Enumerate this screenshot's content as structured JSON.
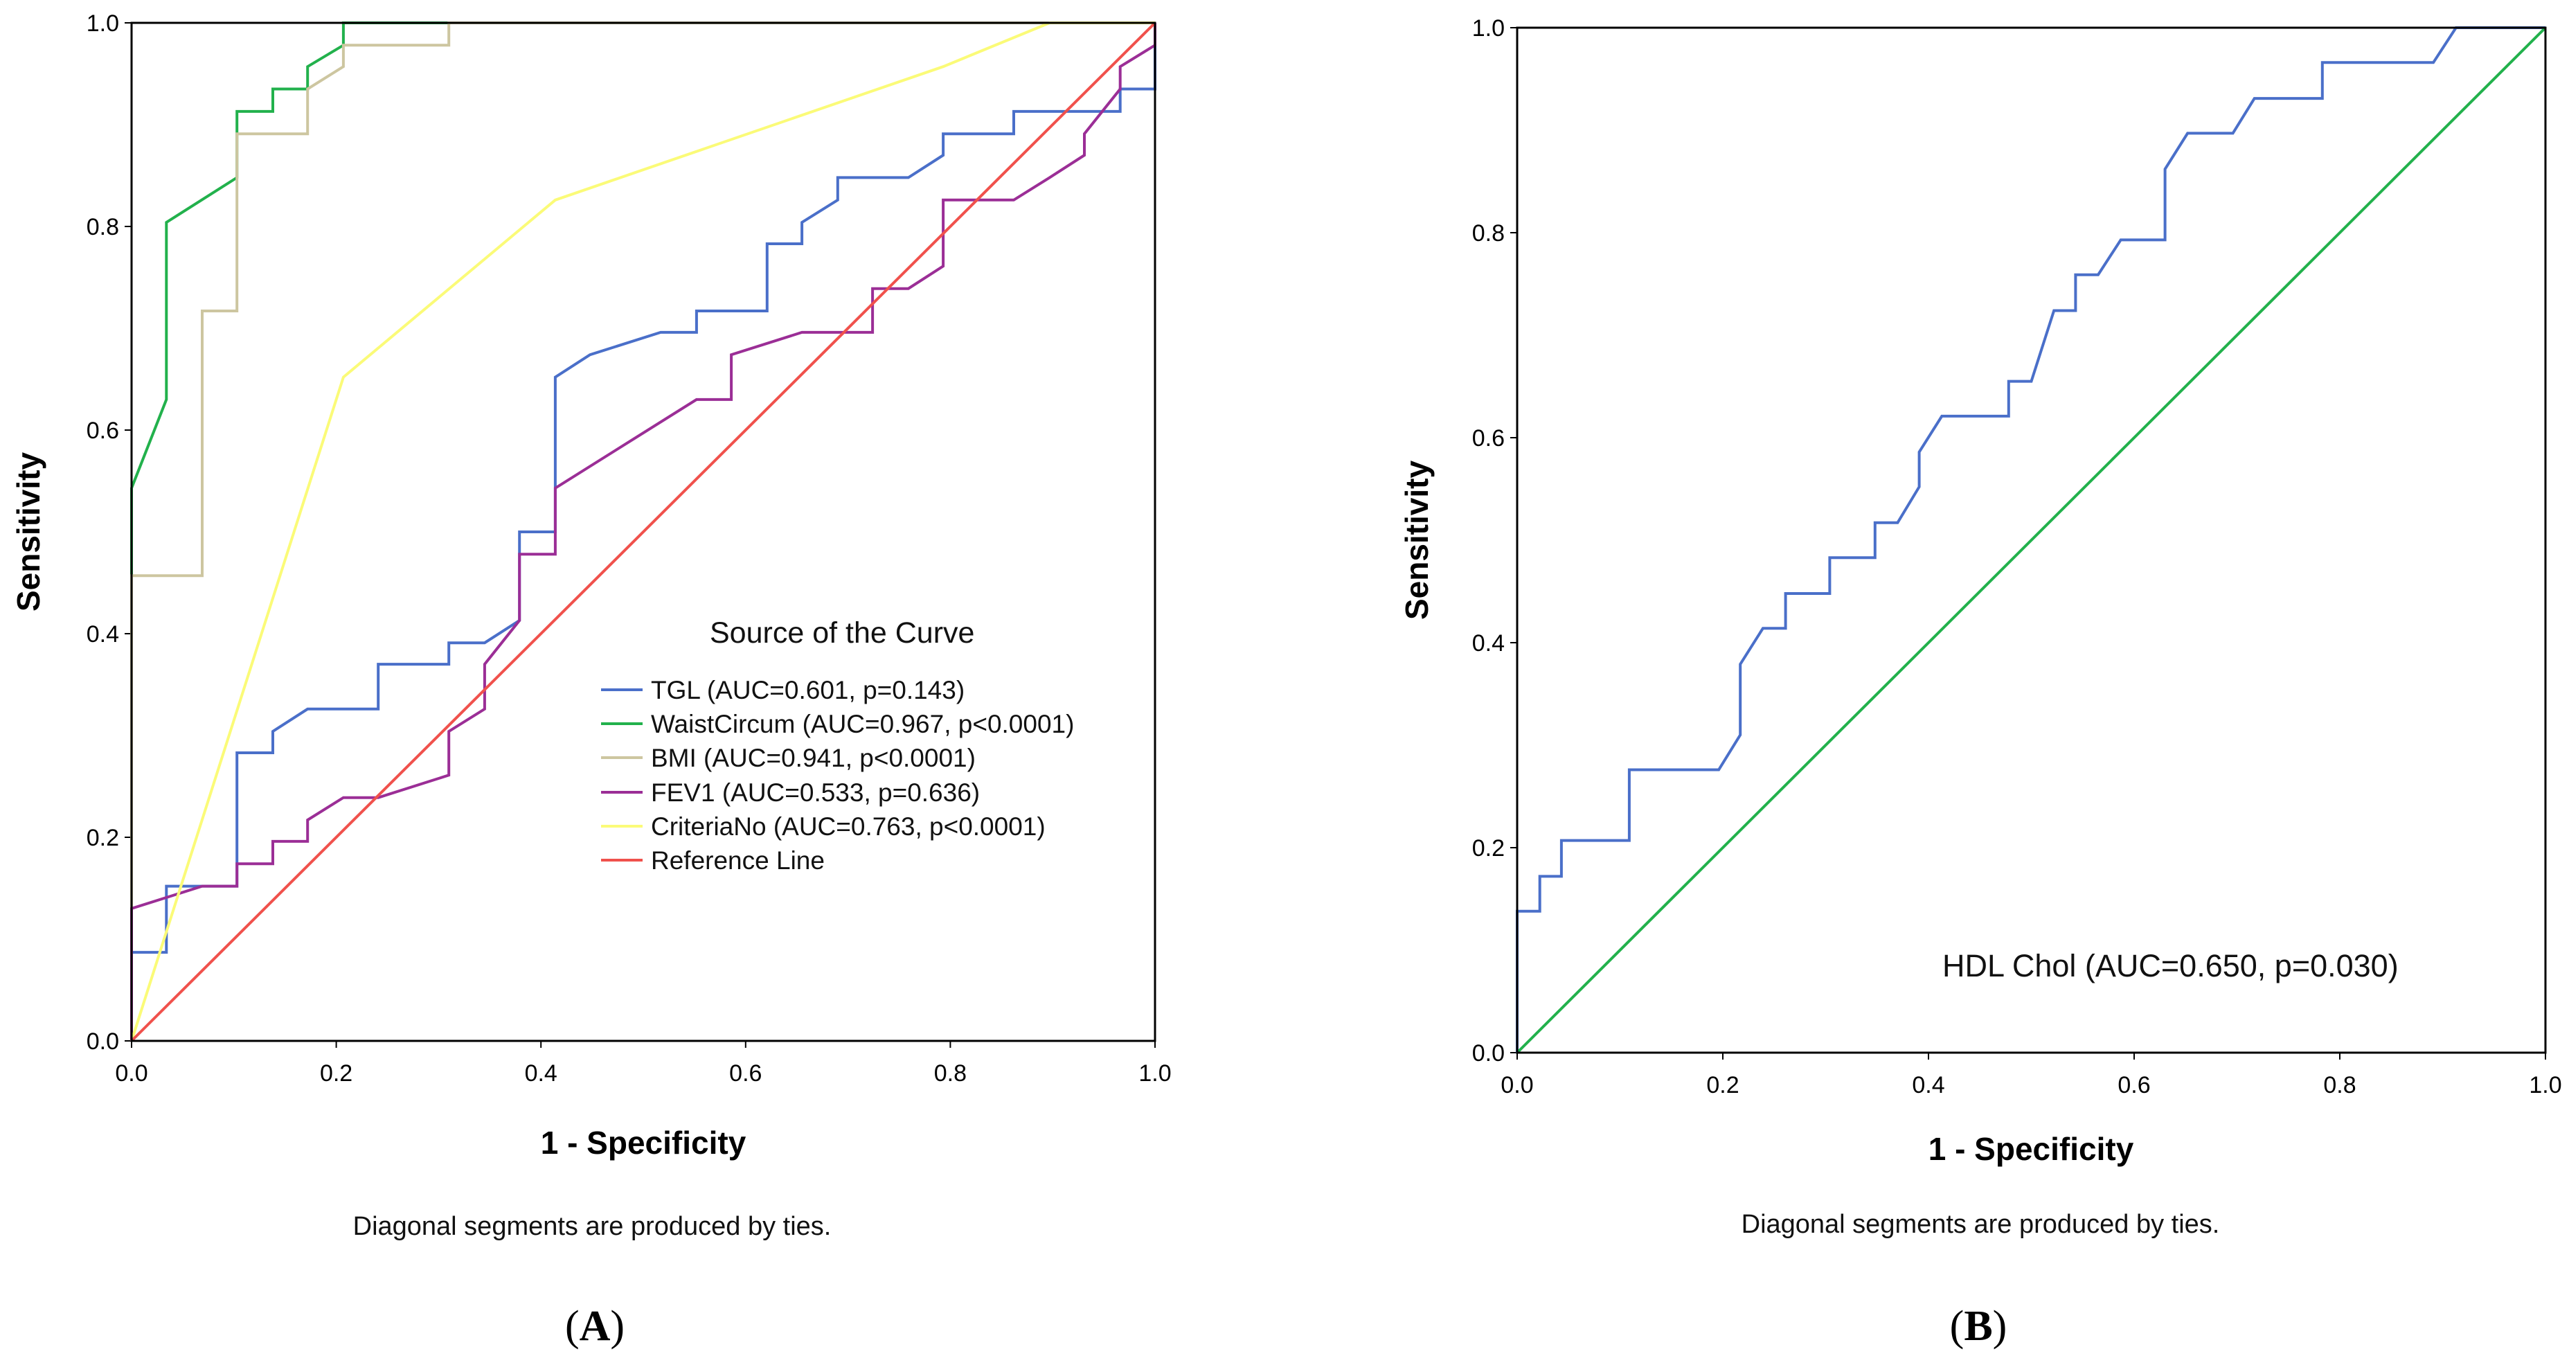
{
  "chart_data": [
    {
      "panel": "A",
      "type": "line",
      "xlabel": "1 - Specificity",
      "ylabel": "Sensitivity",
      "xlim": [
        0,
        1
      ],
      "ylim": [
        0,
        1
      ],
      "xticks": [
        "0.0",
        "0.2",
        "0.4",
        "0.6",
        "0.8",
        "1.0"
      ],
      "yticks": [
        "0.0",
        "0.2",
        "0.4",
        "0.6",
        "0.8",
        "1.0"
      ],
      "legend_title": "Source of the Curve",
      "legend_position": "center-right",
      "grid": false,
      "note": "Diagonal segments are produced by ties.",
      "panel_label": "A",
      "series": [
        {
          "name": "TGL (AUC=0.601, p=0.143)",
          "color": "#4a6fc9",
          "x": [
            0,
            0,
            0.034,
            0.034,
            0.103,
            0.103,
            0.138,
            0.138,
            0.172,
            0.241,
            0.241,
            0.31,
            0.31,
            0.345,
            0.379,
            0.379,
            0.414,
            0.414,
            0.448,
            0.517,
            0.552,
            0.552,
            0.621,
            0.621,
            0.655,
            0.655,
            0.69,
            0.69,
            0.759,
            0.793,
            0.793,
            0.862,
            0.862,
            0.966,
            0.966,
            1.0,
            1.0
          ],
          "y": [
            0,
            0.087,
            0.087,
            0.152,
            0.152,
            0.283,
            0.283,
            0.304,
            0.326,
            0.326,
            0.37,
            0.37,
            0.391,
            0.391,
            0.413,
            0.5,
            0.5,
            0.652,
            0.674,
            0.696,
            0.696,
            0.717,
            0.717,
            0.783,
            0.783,
            0.804,
            0.826,
            0.848,
            0.848,
            0.87,
            0.891,
            0.891,
            0.913,
            0.913,
            0.935,
            0.935,
            1.0
          ]
        },
        {
          "name": "WaistCircum (AUC=0.967, p<0.0001)",
          "color": "#22b14c",
          "x": [
            0,
            0,
            0,
            0.034,
            0.034,
            0.103,
            0.103,
            0.138,
            0.138,
            0.172,
            0.172,
            0.207,
            0.207,
            1.0
          ],
          "y": [
            0,
            0.457,
            0.543,
            0.63,
            0.804,
            0.848,
            0.913,
            0.913,
            0.935,
            0.935,
            0.957,
            0.978,
            1.0,
            1.0
          ]
        },
        {
          "name": "BMI (AUC=0.941, p<0.0001)",
          "color": "#cdc6a0",
          "x": [
            0,
            0,
            0.069,
            0.069,
            0.103,
            0.103,
            0.172,
            0.172,
            0.207,
            0.207,
            0.31,
            0.31,
            1.0
          ],
          "y": [
            0,
            0.457,
            0.457,
            0.717,
            0.717,
            0.891,
            0.891,
            0.935,
            0.957,
            0.978,
            0.978,
            1.0,
            1.0
          ]
        },
        {
          "name": "FEV1 (AUC=0.533, p=0.636)",
          "color": "#9b2e96",
          "x": [
            0,
            0,
            0.069,
            0.103,
            0.103,
            0.138,
            0.138,
            0.172,
            0.172,
            0.207,
            0.241,
            0.31,
            0.31,
            0.345,
            0.345,
            0.379,
            0.379,
            0.414,
            0.414,
            0.552,
            0.586,
            0.586,
            0.655,
            0.724,
            0.724,
            0.759,
            0.793,
            0.793,
            0.862,
            0.897,
            0.931,
            0.931,
            0.966,
            0.966,
            1.0,
            1.0
          ],
          "y": [
            0,
            0.13,
            0.152,
            0.152,
            0.174,
            0.174,
            0.196,
            0.196,
            0.217,
            0.239,
            0.239,
            0.261,
            0.304,
            0.326,
            0.37,
            0.413,
            0.478,
            0.478,
            0.543,
            0.63,
            0.63,
            0.674,
            0.696,
            0.696,
            0.739,
            0.739,
            0.761,
            0.826,
            0.826,
            0.848,
            0.87,
            0.891,
            0.935,
            0.957,
            0.978,
            1.0
          ]
        },
        {
          "name": "CriteriaNo (AUC=0.763, p<0.0001)",
          "color": "#fbfb78",
          "x": [
            0,
            0.207,
            0.414,
            0.793,
            0.897,
            1.0
          ],
          "y": [
            0,
            0.652,
            0.826,
            0.957,
            1.0,
            1.0
          ]
        },
        {
          "name": "Reference Line",
          "color": "#f0514c",
          "x": [
            0,
            1
          ],
          "y": [
            0,
            1
          ]
        }
      ]
    },
    {
      "panel": "B",
      "type": "line",
      "xlabel": "1 - Specificity",
      "ylabel": "Sensitivity",
      "xlim": [
        0,
        1
      ],
      "ylim": [
        0,
        1
      ],
      "xticks": [
        "0.0",
        "0.2",
        "0.4",
        "0.6",
        "0.8",
        "1.0"
      ],
      "yticks": [
        "0.0",
        "0.2",
        "0.4",
        "0.6",
        "0.8",
        "1.0"
      ],
      "grid": false,
      "annotation": "HDL Chol (AUC=0.650, p=0.030)",
      "note": "Diagonal segments are produced by ties.",
      "panel_label": "B",
      "series": [
        {
          "name": "HDL Chol (AUC=0.650, p=0.030)",
          "color": "#4a6fc9",
          "x": [
            0,
            0,
            0.022,
            0.022,
            0.043,
            0.043,
            0.109,
            0.109,
            0.196,
            0.217,
            0.217,
            0.239,
            0.261,
            0.261,
            0.304,
            0.304,
            0.348,
            0.348,
            0.37,
            0.391,
            0.391,
            0.413,
            0.478,
            0.478,
            0.5,
            0.522,
            0.543,
            0.543,
            0.565,
            0.587,
            0.63,
            0.63,
            0.652,
            0.696,
            0.717,
            0.783,
            0.783,
            0.891,
            0.913,
            1.0
          ],
          "y": [
            0,
            0.138,
            0.138,
            0.172,
            0.172,
            0.207,
            0.207,
            0.276,
            0.276,
            0.31,
            0.379,
            0.414,
            0.414,
            0.448,
            0.448,
            0.483,
            0.483,
            0.517,
            0.517,
            0.552,
            0.586,
            0.621,
            0.621,
            0.655,
            0.655,
            0.724,
            0.724,
            0.759,
            0.759,
            0.793,
            0.793,
            0.862,
            0.897,
            0.897,
            0.931,
            0.931,
            0.966,
            0.966,
            1.0,
            1.0
          ]
        },
        {
          "name": "",
          "color": "#22b14c",
          "x": [
            0,
            1
          ],
          "y": [
            0,
            1
          ]
        }
      ]
    }
  ]
}
